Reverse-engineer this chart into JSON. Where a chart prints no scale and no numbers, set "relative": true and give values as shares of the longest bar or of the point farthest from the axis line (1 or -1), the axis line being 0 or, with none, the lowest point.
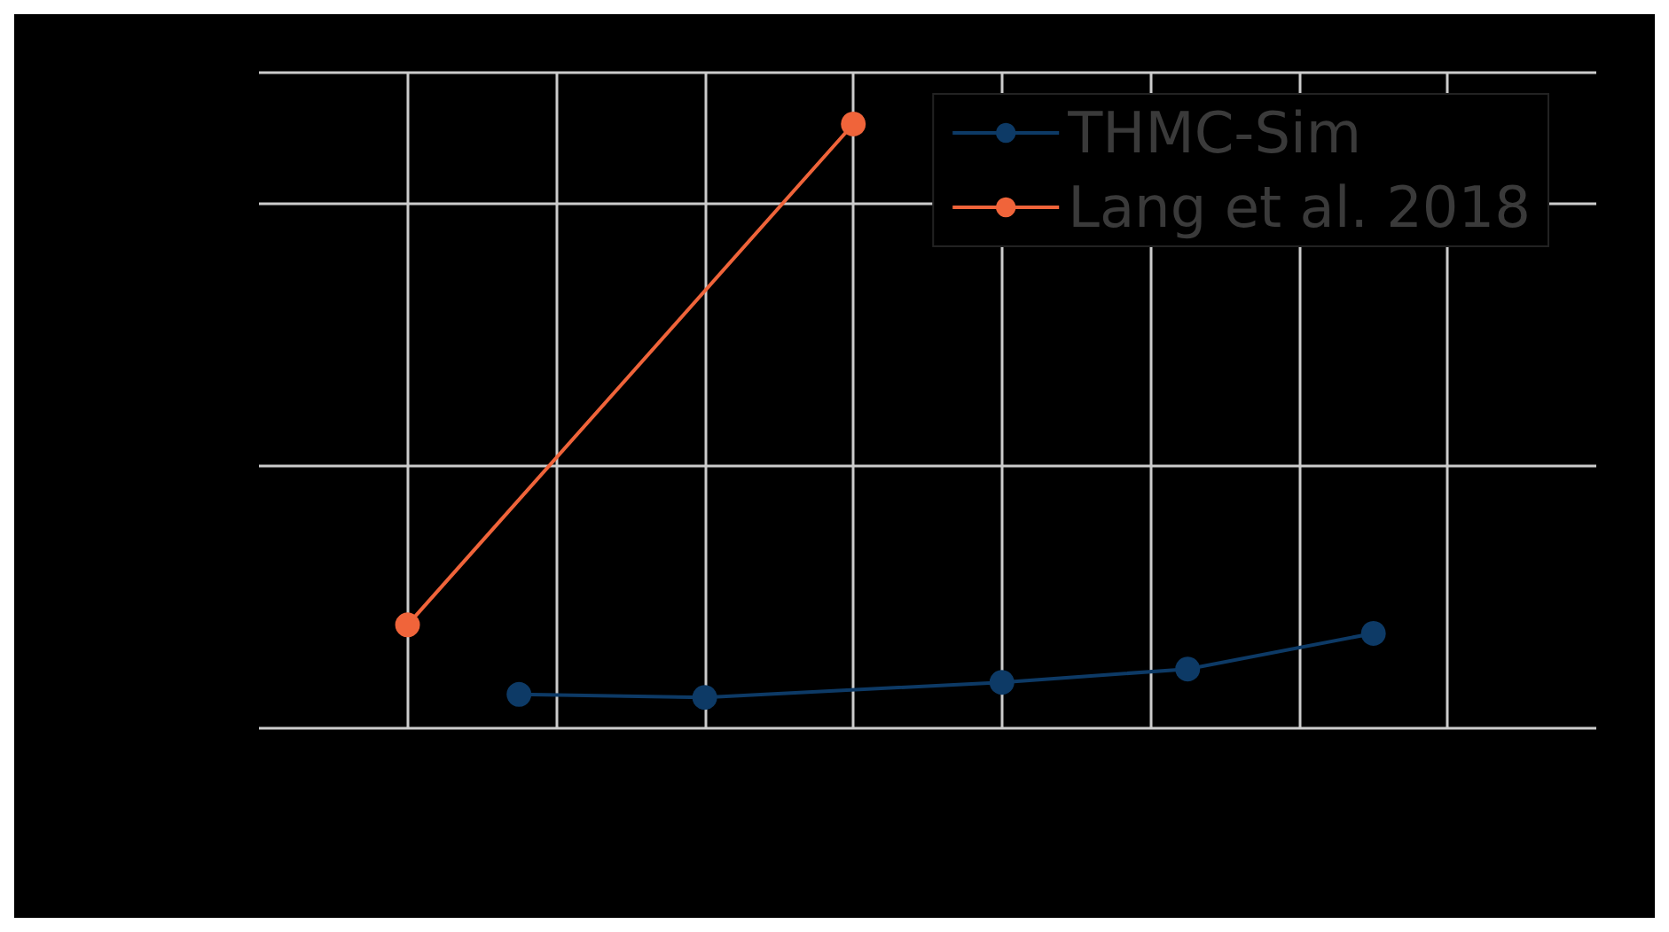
{
  "chart_data": {
    "type": "line",
    "relative": true,
    "categories": [
      null,
      null,
      null,
      null,
      null,
      null,
      null,
      null,
      null,
      null,
      null,
      null,
      null,
      null,
      null,
      null,
      null,
      null,
      null,
      null,
      null,
      null,
      null,
      null,
      null,
      null,
      null,
      null,
      null,
      null,
      null,
      null,
      null,
      null,
      null,
      null,
      null
    ],
    "series": [
      {
        "name": "THMC-Sim",
        "color": "#0d3a66",
        "values": [
          null,
          null,
          null,
          null,
          null,
          null,
          null,
          0.056,
          null,
          null,
          null,
          null,
          0.051,
          null,
          null,
          null,
          null,
          null,
          null,
          null,
          0.076,
          null,
          null,
          null,
          null,
          0.098,
          null,
          null,
          null,
          null,
          0.157,
          null,
          null,
          null,
          null,
          null,
          null
        ]
      },
      {
        "name": "Lang et al. 2018",
        "color": "#f0643a",
        "values": [
          null,
          null,
          null,
          null,
          0.171,
          null,
          null,
          null,
          null,
          null,
          null,
          null,
          null,
          null,
          null,
          null,
          1,
          null,
          null,
          null,
          null,
          null,
          null,
          null,
          null,
          null,
          null,
          null,
          null,
          null,
          null,
          null,
          null,
          null,
          null,
          null,
          null
        ]
      }
    ],
    "grid": true,
    "legend": "top right",
    "marker": "circle",
    "line_style": "solid"
  }
}
